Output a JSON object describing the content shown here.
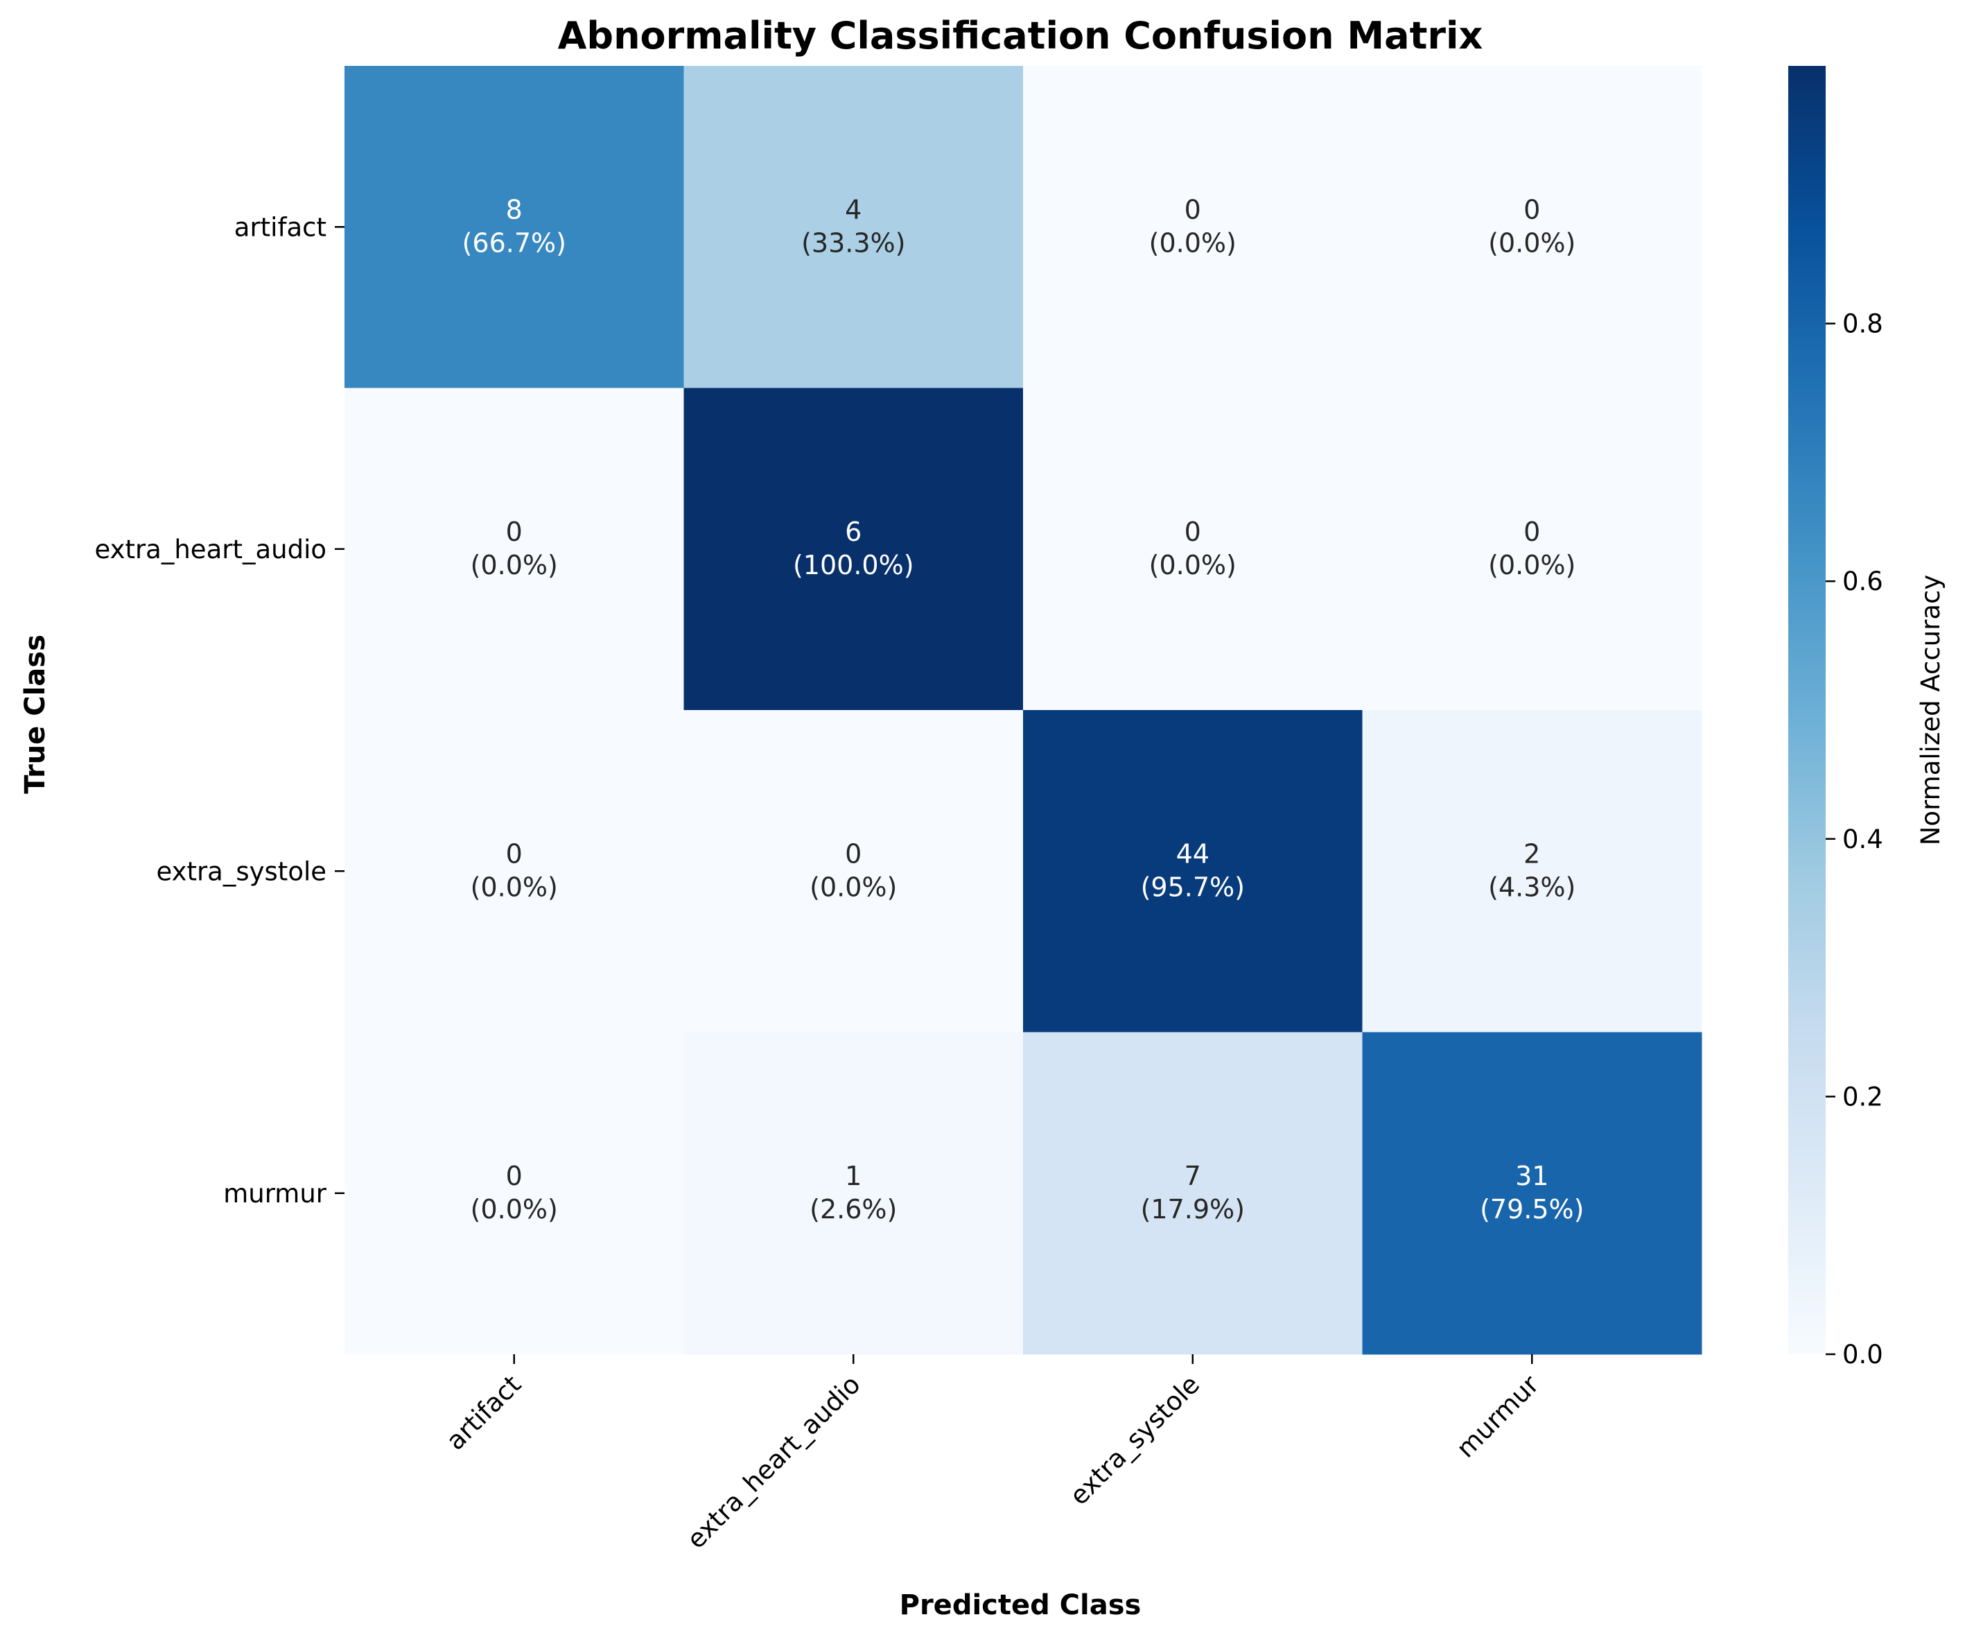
{
  "chart_data": {
    "type": "heatmap",
    "title": "Abnormality Classification Confusion Matrix",
    "xlabel": "Predicted Class",
    "ylabel": "True Class",
    "row_labels": [
      "artifact",
      "extra_heart_audio",
      "extra_systole",
      "murmur"
    ],
    "col_labels": [
      "artifact",
      "extra_heart_audio",
      "extra_systole",
      "murmur"
    ],
    "counts": [
      [
        8,
        4,
        0,
        0
      ],
      [
        0,
        6,
        0,
        0
      ],
      [
        0,
        0,
        44,
        2
      ],
      [
        0,
        1,
        7,
        31
      ]
    ],
    "percent_labels": [
      [
        "(66.7%)",
        "(33.3%)",
        "(0.0%)",
        "(0.0%)"
      ],
      [
        "(0.0%)",
        "(100.0%)",
        "(0.0%)",
        "(0.0%)"
      ],
      [
        "(0.0%)",
        "(0.0%)",
        "(95.7%)",
        "(4.3%)"
      ],
      [
        "(0.0%)",
        "(2.6%)",
        "(17.9%)",
        "(79.5%)"
      ]
    ],
    "normalized": [
      [
        0.667,
        0.333,
        0.0,
        0.0
      ],
      [
        0.0,
        1.0,
        0.0,
        0.0
      ],
      [
        0.0,
        0.0,
        0.957,
        0.043
      ],
      [
        0.0,
        0.026,
        0.179,
        0.795
      ]
    ],
    "colormap": "Blues",
    "colorbar": {
      "label": "Normalized Accuracy",
      "range": [
        0,
        1
      ],
      "ticks": [
        "0.0",
        "0.2",
        "0.4",
        "0.6",
        "0.8"
      ],
      "tick_values": [
        0.0,
        0.2,
        0.4,
        0.6,
        0.8
      ],
      "colors": [
        "#f7fbff",
        "#deebf7",
        "#c6dbef",
        "#9ecae1",
        "#6baed6",
        "#4292c6",
        "#2171b5",
        "#08519c",
        "#08306b"
      ]
    }
  }
}
